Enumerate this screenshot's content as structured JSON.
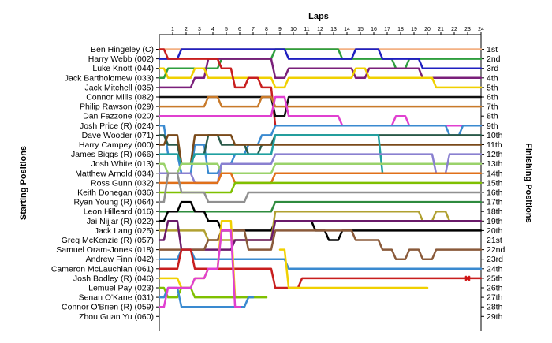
{
  "chart_data": {
    "type": "line",
    "title": "Laps",
    "ylabel_left": "Starting Positions",
    "ylabel_right": "Finishing Positions",
    "laps": [
      1,
      2,
      3,
      4,
      5,
      6,
      7,
      8,
      9,
      10,
      11,
      12,
      13,
      14,
      15,
      16,
      17,
      18,
      19,
      20,
      21,
      22,
      23,
      24
    ],
    "drivers": [
      "Ben Hingeley (C)",
      "Harry Webb (002)",
      "Luke Knott (044)",
      "Jack Bartholomew (033)",
      "Jack Mitchell (035)",
      "Connor Mills (082)",
      "Philip Rawson (029)",
      "Dan Fazzone (020)",
      "Josh Price (R) (024)",
      "Dave Wooder (071)",
      "Harry Campey (000)",
      "James Biggs (R) (066)",
      "Josh White (013)",
      "Matthew Arnold (034)",
      "Ross Gunn (032)",
      "Keith Donegan (036)",
      "Ryan Young (R) (064)",
      "Leon Hilleard (016)",
      "Jai Nijjar (R) (022)",
      "Jack Lang (025)",
      "Greg McKenzie (R) (057)",
      "Samuel Oram-Jones (018)",
      "Andrew Finn (042)",
      "Cameron McLauchlan (061)",
      "Josh Bodley (R) (046)",
      "Lemuel Pay (023)",
      "Senan O'Kane (031)",
      "Connor O'Brien (R) (059)",
      "Zhou Guan Yu (060)"
    ],
    "finishing_positions": [
      "1st",
      "2nd",
      "3rd",
      "4th",
      "5th",
      "6th",
      "7th",
      "8th",
      "9th",
      "10th",
      "11th",
      "12th",
      "13th",
      "14th",
      "15th",
      "16th",
      "17th",
      "18th",
      "19th",
      "20th",
      "21st",
      "22nd",
      "23rd",
      "24th",
      "25th",
      "26th",
      "27th",
      "28th",
      "29th"
    ],
    "series": [
      {
        "color": "#f4b183",
        "pos": [
          1,
          1,
          1,
          1,
          1,
          1,
          1,
          1,
          1,
          1,
          1,
          1,
          1,
          1,
          1,
          1,
          1,
          1,
          1,
          1,
          1,
          1,
          1,
          1,
          1
        ]
      },
      {
        "color": "#2e9e3e",
        "pos": [
          4,
          3,
          3,
          3,
          3,
          2,
          2,
          2,
          2,
          1,
          1,
          1,
          1,
          1,
          2,
          2,
          2,
          2,
          3,
          2,
          2,
          2,
          2,
          2,
          2
        ]
      },
      {
        "color": "#2020c0",
        "pos": [
          2,
          2,
          1,
          1,
          1,
          1,
          1,
          1,
          1,
          1,
          2,
          2,
          2,
          2,
          2,
          1,
          1,
          2,
          2,
          2,
          3,
          3,
          3,
          3,
          3
        ]
      },
      {
        "color": "#7a1f7a",
        "pos": [
          5,
          5,
          5,
          4,
          2,
          2,
          2,
          2,
          2,
          4,
          3,
          3,
          3,
          3,
          3,
          4,
          3,
          3,
          3,
          3,
          4,
          4,
          4,
          4,
          4
        ]
      },
      {
        "color": "#f0d000",
        "pos": [
          3,
          4,
          4,
          3,
          4,
          4,
          4,
          4,
          4,
          5,
          4,
          4,
          4,
          4,
          4,
          3,
          4,
          4,
          4,
          4,
          4,
          5,
          5,
          5,
          5
        ]
      },
      {
        "color": "#c81e1e",
        "pos": [
          1,
          2,
          2,
          2,
          2,
          3,
          5,
          4,
          5,
          9,
          9,
          9,
          9,
          9,
          9,
          9,
          9,
          9,
          9,
          9,
          9,
          9,
          9,
          9,
          9
        ]
      },
      {
        "color": "#101010",
        "pos": [
          6,
          6,
          6,
          6,
          6,
          6,
          6,
          6,
          6,
          8,
          6,
          6,
          6,
          6,
          6,
          6,
          6,
          6,
          6,
          6,
          6,
          6,
          6,
          6,
          6
        ]
      },
      {
        "color": "#c97a2a",
        "pos": [
          7,
          7,
          7,
          7,
          6,
          7,
          7,
          7,
          6,
          7,
          7,
          7,
          7,
          7,
          7,
          7,
          7,
          7,
          7,
          7,
          7,
          7,
          7,
          7,
          7
        ]
      },
      {
        "color": "#e040d0",
        "pos": [
          8,
          8,
          8,
          8,
          8,
          8,
          8,
          8,
          8,
          6,
          8,
          8,
          8,
          8,
          9,
          9,
          9,
          9,
          8,
          9,
          9,
          9,
          9,
          9,
          9
        ]
      },
      {
        "color": "#3a8ad0",
        "pos": [
          9,
          12,
          14,
          11,
          14,
          13,
          12,
          11,
          10,
          9,
          9,
          9,
          9,
          9,
          9,
          9,
          9,
          9,
          9,
          9,
          9,
          9,
          10,
          9,
          9
        ]
      },
      {
        "color": "#2a5a4a",
        "pos": [
          10,
          11,
          13,
          12,
          10,
          11,
          11,
          12,
          11,
          10,
          10,
          10,
          10,
          10,
          10,
          10,
          10,
          10,
          10,
          10,
          10,
          10,
          10,
          10,
          10
        ]
      },
      {
        "color": "#7a4a1a",
        "pos": [
          11,
          10,
          13,
          10,
          10,
          10,
          11,
          11,
          11,
          11,
          11,
          11,
          11,
          11,
          11,
          11,
          11,
          11,
          11,
          11,
          11,
          11,
          11,
          11,
          11
        ]
      },
      {
        "color": "#20a0a0",
        "pos": [
          12,
          12,
          13,
          12,
          12,
          12,
          12,
          12,
          12,
          10,
          10,
          10,
          10,
          10,
          10,
          10,
          10,
          14,
          14,
          14,
          14,
          14,
          14,
          14,
          14
        ]
      },
      {
        "color": "#9ad26a",
        "pos": [
          13,
          14,
          13,
          13,
          13,
          14,
          14,
          14,
          14,
          13,
          13,
          13,
          13,
          13,
          13,
          13,
          13,
          13,
          13,
          13,
          13,
          13,
          13,
          13,
          13
        ]
      },
      {
        "color": "#8a80d0",
        "pos": [
          14,
          14,
          14,
          15,
          15,
          13,
          13,
          13,
          13,
          12,
          12,
          12,
          12,
          12,
          12,
          12,
          12,
          12,
          12,
          12,
          12,
          14,
          12,
          12,
          12
        ]
      },
      {
        "color": "#e0701a",
        "pos": [
          15,
          15,
          15,
          15,
          15,
          14,
          15,
          15,
          15,
          14,
          14,
          14,
          14,
          14,
          14,
          14,
          14,
          14,
          14,
          14,
          14,
          14,
          14,
          14,
          14
        ]
      },
      {
        "color": "#7fc000",
        "pos": [
          16,
          16,
          16,
          16,
          16,
          16,
          15,
          15,
          15,
          15,
          15,
          15,
          15,
          15,
          15,
          15,
          15,
          15,
          15,
          15,
          15,
          15,
          15,
          15,
          15
        ]
      },
      {
        "color": "#909090",
        "pos": [
          17,
          14,
          16,
          16,
          17,
          17,
          17,
          16,
          16,
          16,
          16,
          16,
          16,
          16,
          16,
          16,
          16,
          16,
          16,
          16,
          16,
          16,
          16,
          16,
          16
        ]
      },
      {
        "color": "#2e8b3e",
        "pos": [
          18,
          18,
          18,
          18,
          18,
          18,
          18,
          18,
          18,
          17,
          17,
          17,
          17,
          17,
          17,
          17,
          17,
          17,
          17,
          17,
          17,
          17,
          17,
          17,
          17
        ]
      },
      {
        "color": "#000000",
        "pos": [
          19,
          18,
          17,
          18,
          19,
          20,
          20,
          20,
          20,
          19,
          19,
          19,
          20,
          21,
          20,
          20,
          20,
          20,
          20,
          20,
          20,
          20,
          20,
          20,
          20
        ]
      },
      {
        "color": "#b0a030",
        "pos": [
          20,
          20,
          20,
          20,
          21,
          21,
          21,
          21,
          21,
          18,
          18,
          18,
          18,
          18,
          18,
          18,
          18,
          18,
          18,
          18,
          19,
          18,
          19,
          19,
          19
        ]
      },
      {
        "color": "#6a1a6a",
        "pos": [
          21,
          19,
          22,
          22,
          22,
          22,
          21,
          21,
          21,
          19,
          19,
          19,
          19,
          19,
          19,
          19,
          19,
          19,
          19,
          19,
          19,
          19,
          19,
          19,
          19
        ]
      },
      {
        "color": "#8a5a3a",
        "pos": [
          22,
          22,
          22,
          22,
          21,
          20,
          20,
          22,
          22,
          20,
          20,
          20,
          20,
          20,
          20,
          21,
          21,
          22,
          23,
          22,
          23,
          22,
          22,
          22,
          22
        ]
      },
      {
        "color": "#3a8ad0",
        "pos": [
          23,
          23,
          22,
          23,
          23,
          23,
          23,
          23,
          23,
          23,
          24,
          24,
          24,
          24,
          24,
          24,
          24,
          24,
          24,
          24,
          24,
          24,
          24,
          24,
          24
        ]
      },
      {
        "color": "#c81e1e",
        "pos": [
          24,
          24,
          22,
          24,
          24,
          24,
          24,
          24,
          24,
          26,
          26,
          25,
          25,
          25,
          25,
          25,
          25,
          25,
          25,
          25,
          25,
          25,
          25,
          25,
          25
        ]
      },
      {
        "color": "#f0d000",
        "pos": [
          25,
          25,
          26,
          25,
          24,
          19,
          27,
          null,
          null,
          22,
          26,
          26,
          26,
          26,
          26,
          26,
          26,
          26,
          26,
          26,
          26,
          null,
          null,
          null,
          null
        ]
      },
      {
        "color": "#7fc000",
        "pos": [
          26,
          27,
          26,
          27,
          27,
          27,
          27,
          27,
          27,
          null,
          null,
          null,
          null,
          null,
          null,
          null,
          null,
          null,
          null,
          null,
          null,
          null,
          null,
          null,
          null
        ]
      },
      {
        "color": "#3a8ad0",
        "pos": [
          27,
          26,
          28,
          28,
          28,
          28,
          28,
          27,
          null,
          null,
          null,
          null,
          null,
          null,
          null,
          null,
          null,
          null,
          null,
          null,
          null,
          null,
          null,
          null,
          null
        ]
      },
      {
        "color": "#e040d0",
        "pos": [
          28,
          26,
          26,
          25,
          24,
          20,
          28,
          null,
          null,
          null,
          null,
          null,
          null,
          null,
          null,
          null,
          null,
          null,
          null,
          null,
          null,
          null,
          null,
          null,
          null
        ]
      }
    ],
    "retired_marker": {
      "lap": 23,
      "position": 25,
      "symbol": "✖"
    }
  }
}
